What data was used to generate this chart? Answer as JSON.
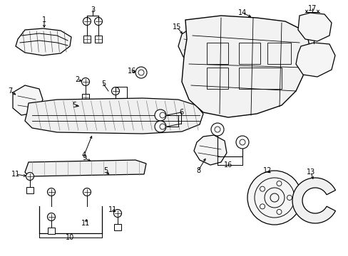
{
  "bg_color": "#ffffff",
  "fig_width": 4.89,
  "fig_height": 3.6,
  "dpi": 100
}
